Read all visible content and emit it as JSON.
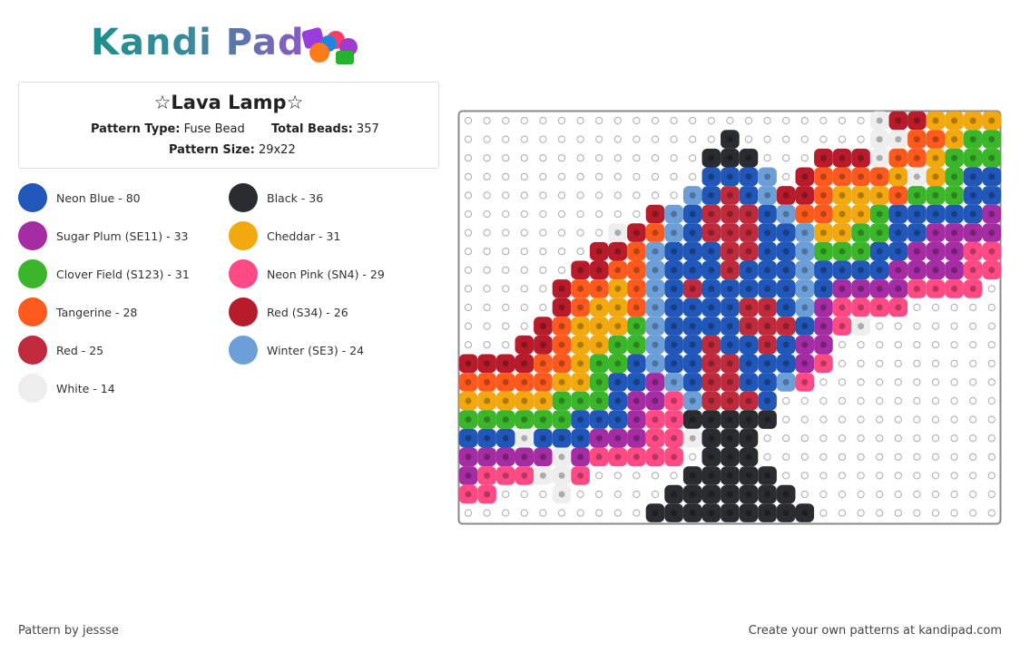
{
  "header": {
    "logo": "Kandi Pad"
  },
  "pattern": {
    "title": "☆Lava Lamp☆",
    "type_label": "Pattern Type:",
    "type_value": "Fuse Bead",
    "beads_label": "Total Beads:",
    "beads_value": "357",
    "size_label": "Pattern Size:",
    "size_value": "29x22"
  },
  "legend": {
    "items": [
      {
        "label": "Neon Blue - 80",
        "color": "#2157b9"
      },
      {
        "label": "Black - 36",
        "color": "#2b2c2f"
      },
      {
        "label": "Sugar Plum (SE11) - 33",
        "color": "#a52ca3"
      },
      {
        "label": "Cheddar - 31",
        "color": "#f2a80f"
      },
      {
        "label": "Clover Field (S123) - 31",
        "color": "#3bb62b"
      },
      {
        "label": "Neon Pink (SN4) - 29",
        "color": "#ff4a84"
      },
      {
        "label": "Tangerine - 28",
        "color": "#ff5a1e"
      },
      {
        "label": "Red (S34) - 26",
        "color": "#b81c2b"
      },
      {
        "label": "Red - 25",
        "color": "#c02a3d"
      },
      {
        "label": "Winter (SE3) - 24",
        "color": "#6c9fd8"
      },
      {
        "label": "White - 14",
        "color": "#eeeeee"
      }
    ]
  },
  "footer": {
    "credit": "Pattern by jessse",
    "promo": "Create your own patterns at kandipad.com"
  }
}
